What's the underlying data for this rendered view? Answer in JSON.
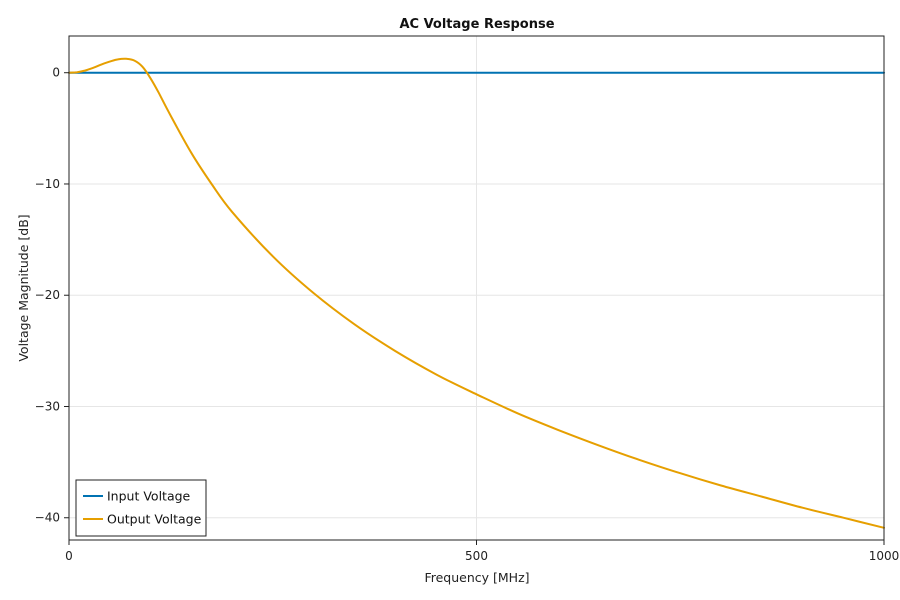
{
  "chart_data": {
    "type": "line",
    "title": "AC Voltage Response",
    "xlabel": "Frequency [MHz]",
    "ylabel": "Voltage Magnitude [dB]",
    "xlim": [
      0,
      1000
    ],
    "ylim": [
      -42,
      3.3
    ],
    "xticks": [
      0,
      500,
      1000
    ],
    "xtick_labels": [
      "0",
      "500",
      "1000"
    ],
    "yticks": [
      0,
      -10,
      -20,
      -30,
      -40
    ],
    "ytick_labels": [
      "0",
      "−10",
      "−20",
      "−30",
      "−40"
    ],
    "grid": true,
    "legend_position": "bottom-left",
    "series": [
      {
        "name": "Input Voltage",
        "color": "#0072b2",
        "x": [
          0,
          1000
        ],
        "y": [
          0,
          0
        ]
      },
      {
        "name": "Output Voltage",
        "color": "#e69f00",
        "x": [
          0,
          10,
          20,
          30,
          40,
          50,
          60,
          70,
          80,
          90,
          100,
          110,
          125,
          150,
          175,
          200,
          250,
          300,
          350,
          400,
          450,
          500,
          550,
          600,
          650,
          700,
          750,
          800,
          850,
          900,
          950,
          1000
        ],
        "y": [
          0,
          0.05,
          0.2,
          0.45,
          0.75,
          1.0,
          1.2,
          1.25,
          1.1,
          0.55,
          -0.5,
          -1.8,
          -3.9,
          -7.2,
          -10.0,
          -12.5,
          -16.5,
          -19.8,
          -22.6,
          -25.0,
          -27.1,
          -28.9,
          -30.6,
          -32.1,
          -33.5,
          -34.8,
          -36.0,
          -37.1,
          -38.1,
          -39.1,
          -40.0,
          -40.9
        ]
      }
    ]
  }
}
